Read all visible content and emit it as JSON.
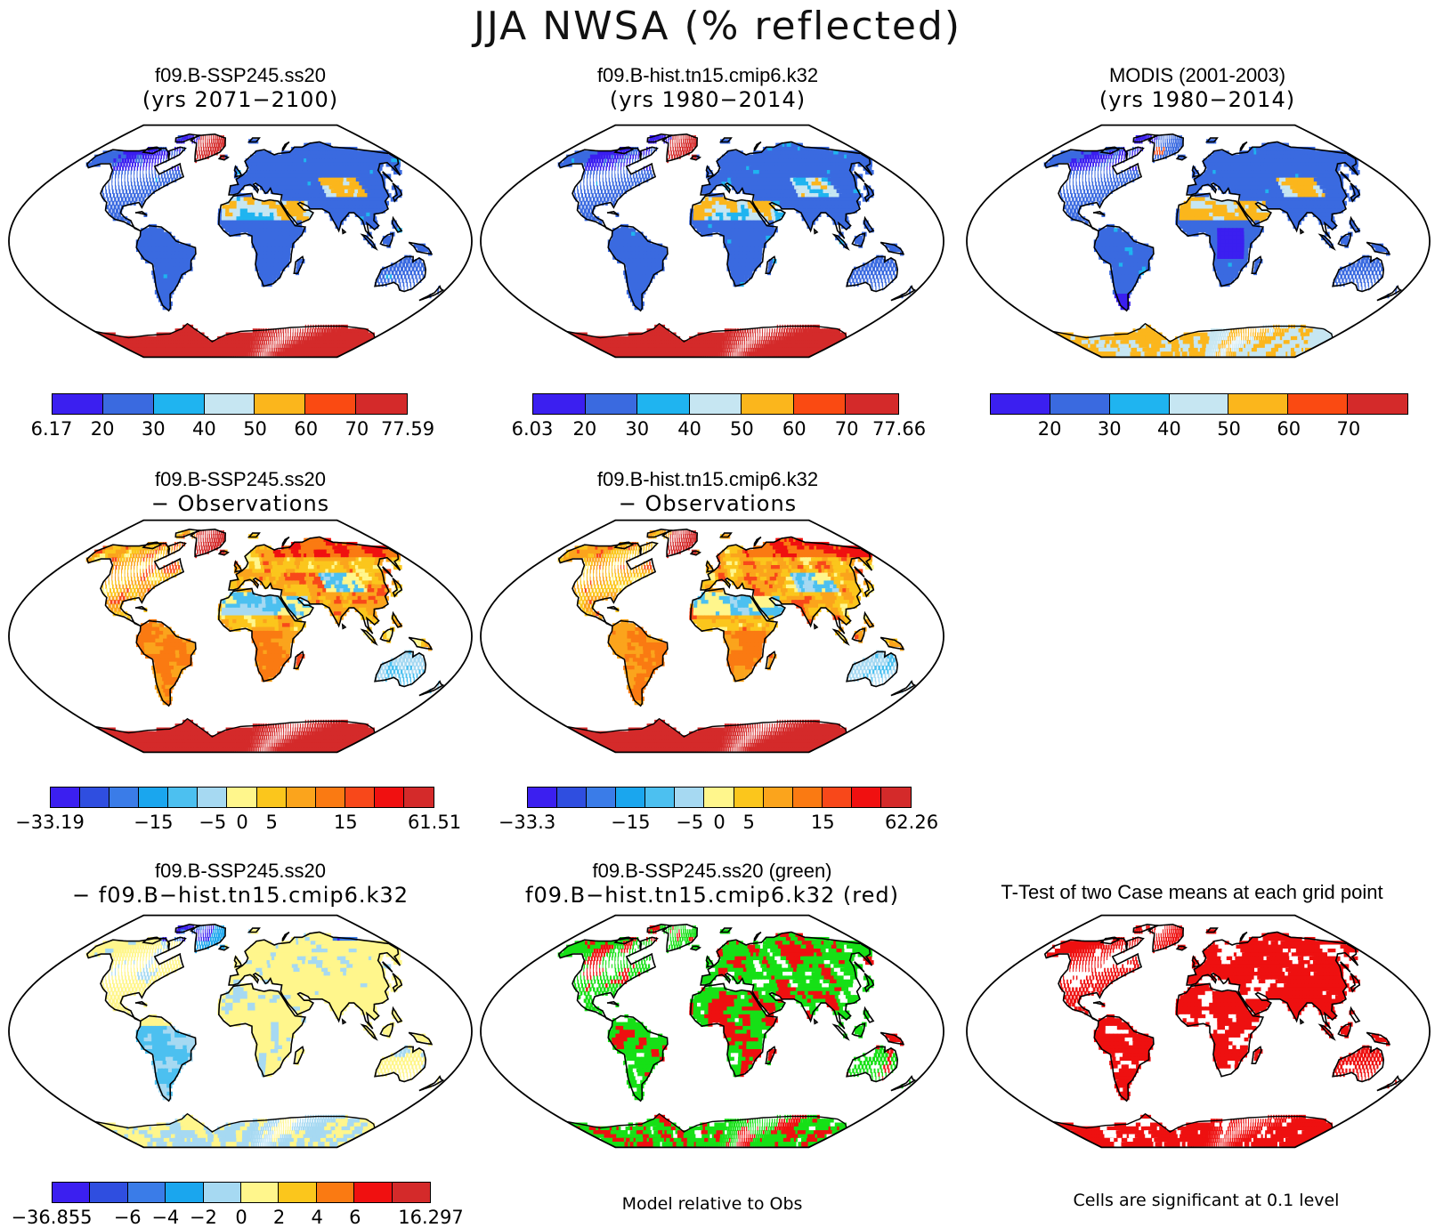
{
  "title": "JJA NWSA (% reflected)",
  "colors": {
    "abs": [
      "#3b1ff0",
      "#3a6ae0",
      "#1fb4f0",
      "#c6e6f2",
      "#fbb61c",
      "#fa4a12",
      "#d42a2a"
    ],
    "diff": [
      "#3b1ff0",
      "#2f4ee0",
      "#3a7ce8",
      "#1aa6ee",
      "#4cc0f0",
      "#a6d9f2",
      "#fff68c",
      "#fbc61c",
      "#fba41c",
      "#fa7a12",
      "#f8481a",
      "#f01010",
      "#d42a2a"
    ],
    "ocean": "#ffffff",
    "sig_green": "#16e016",
    "sig_red": "#ee1010"
  },
  "panels": [
    {
      "line1": "f09.B-SSP245.ss20",
      "line2": "(yrs 2071−2100)",
      "scheme": "abs",
      "ticks": [
        "6.17",
        "20",
        "30",
        "40",
        "50",
        "60",
        "70",
        "77.59"
      ],
      "tick_style": "edges"
    },
    {
      "line1": "f09.B-hist.tn15.cmip6.k32",
      "line2": "(yrs 1980−2014)",
      "scheme": "abs",
      "ticks": [
        "6.03",
        "20",
        "30",
        "40",
        "50",
        "60",
        "70",
        "77.66"
      ],
      "tick_style": "edges"
    },
    {
      "line1": "MODIS (2001-2003)",
      "line2": "(yrs 1980−2014)",
      "scheme": "abs",
      "ticks": [
        "20",
        "30",
        "40",
        "50",
        "60",
        "70"
      ],
      "tick_style": "inner"
    },
    {
      "line1": "f09.B-SSP245.ss20",
      "line2": "− Observations",
      "scheme": "diff",
      "ticks": [
        "−33.19",
        "−15",
        "−5",
        "0",
        "5",
        "15",
        "61.51"
      ]
    },
    {
      "line1": "f09.B-hist.tn15.cmip6.k32",
      "line2": "− Observations",
      "scheme": "diff",
      "ticks": [
        "−33.3",
        "−15",
        "−5",
        "0",
        "5",
        "15",
        "62.26"
      ]
    },
    {
      "line1": "f09.B-SSP245.ss20",
      "line2": "− f09.B−hist.tn15.cmip6.k32",
      "scheme": "diff2",
      "ticks": [
        "−36.855",
        "−6",
        "−4",
        "−2",
        "0",
        "2",
        "4",
        "6",
        "16.297"
      ]
    },
    {
      "line1": "f09.B-SSP245.ss20 (green)",
      "line2": "f09.B−hist.tn15.cmip6.k32 (red)",
      "scheme": "sig2"
    },
    {
      "line1": "T-Test of two Case means at each grid point",
      "line2": "",
      "scheme": "sig1"
    }
  ],
  "notes": {
    "model_rel": "Model relative to Obs",
    "significance": "Cells are significant at 0.1 level"
  }
}
